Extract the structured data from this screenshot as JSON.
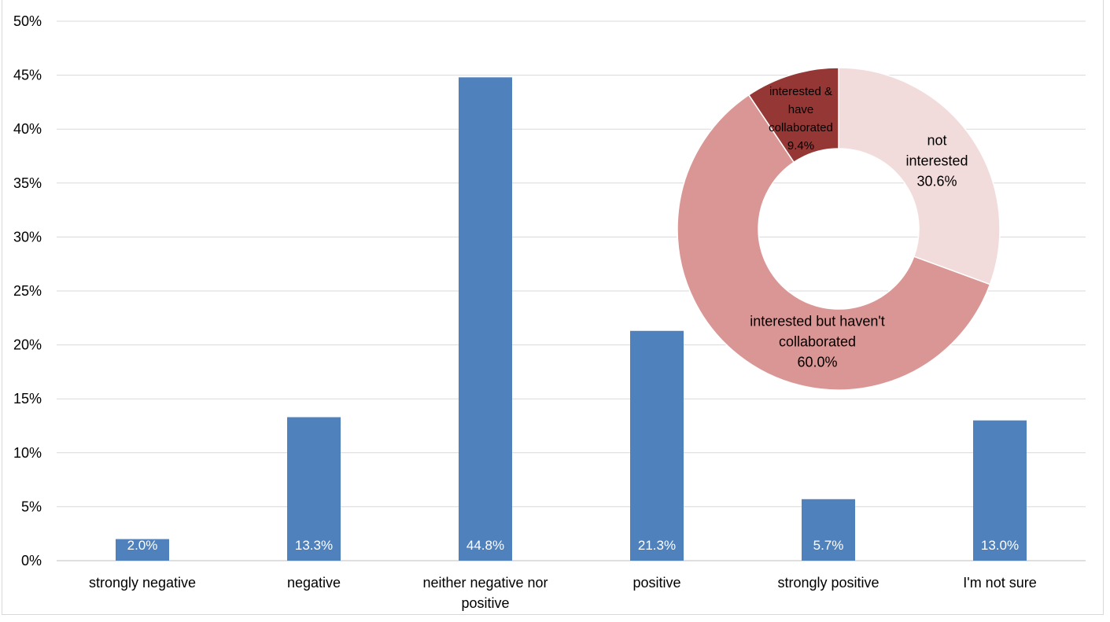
{
  "chart_data": [
    {
      "type": "bar",
      "categories": [
        "strongly negative",
        "negative",
        "neither negative nor positive",
        "positive",
        "strongly positive",
        "I'm not sure"
      ],
      "category_lines": [
        [
          "strongly negative"
        ],
        [
          "negative"
        ],
        [
          "neither negative nor",
          "positive"
        ],
        [
          "positive"
        ],
        [
          "strongly positive"
        ],
        [
          "I'm not sure"
        ]
      ],
      "values": [
        2.0,
        13.3,
        44.8,
        21.3,
        5.7,
        13.0
      ],
      "data_labels": [
        "2.0%",
        "13.3%",
        "44.8%",
        "21.3%",
        "5.7%",
        "13.0%"
      ],
      "ylim": [
        0,
        50
      ],
      "yticks": [
        "0%",
        "5%",
        "10%",
        "15%",
        "20%",
        "25%",
        "30%",
        "35%",
        "40%",
        "45%",
        "50%"
      ],
      "grid": true,
      "bar_color": "#4f81bd"
    },
    {
      "type": "pie",
      "donut": true,
      "slices": [
        {
          "label_lines": [
            "not",
            "interested"
          ],
          "value_label": "30.6%",
          "value": 30.6,
          "color": "#f2dcdb"
        },
        {
          "label_lines": [
            "interested but haven't",
            "collaborated"
          ],
          "value_label": "60.0%",
          "value": 60.0,
          "color": "#da9694"
        },
        {
          "label_lines": [
            "interested &",
            "have",
            "collaborated"
          ],
          "value_label": "9.4%",
          "value": 9.4,
          "color": "#953735"
        }
      ]
    }
  ],
  "colors": {
    "gridline": "#d9d9d9",
    "axis": "#bfbfbf"
  }
}
